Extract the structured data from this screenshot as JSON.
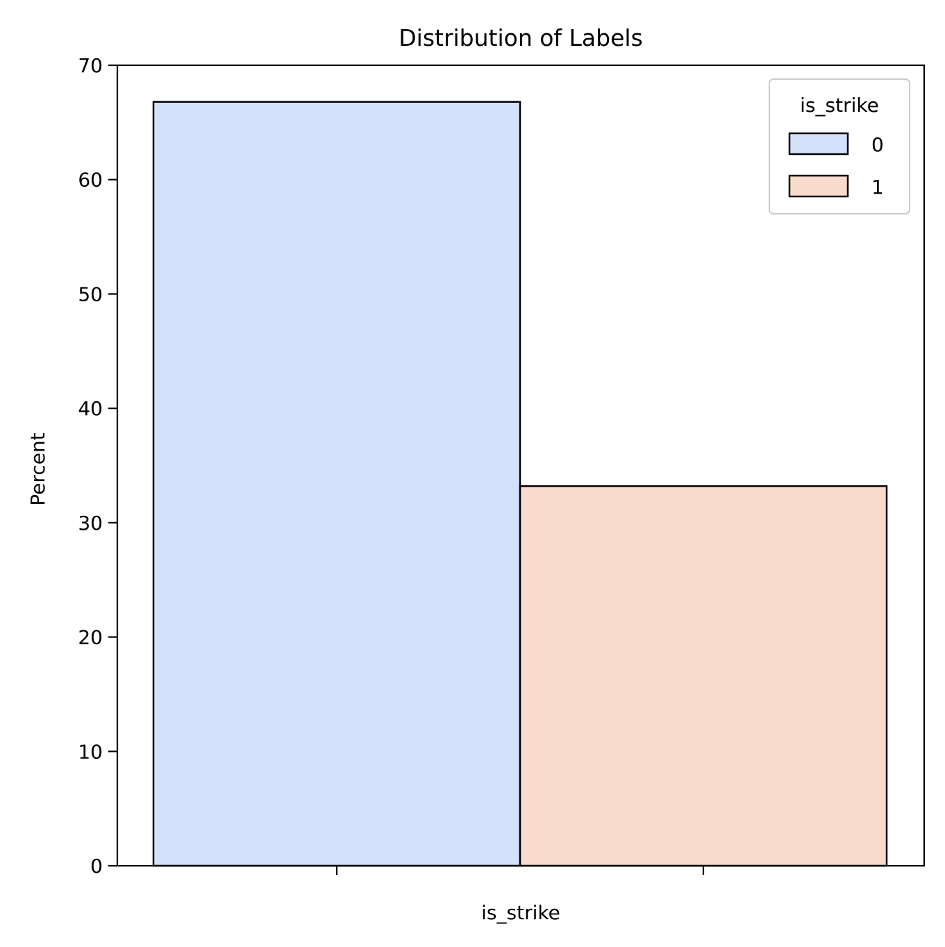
{
  "chart_data": {
    "type": "bar",
    "title": "Distribution of Labels",
    "xlabel": "is_strike",
    "ylabel": "Percent",
    "ylim": [
      0,
      70
    ],
    "yticks": [
      0,
      10,
      20,
      30,
      40,
      50,
      60,
      70
    ],
    "grid": false,
    "legend": {
      "title": "is_strike",
      "placement": "top-right"
    },
    "series": [
      {
        "name": "0",
        "value": 66.8,
        "color": "#d4e1fb"
      },
      {
        "name": "1",
        "value": 33.2,
        "color": "#f9dbce"
      }
    ]
  }
}
